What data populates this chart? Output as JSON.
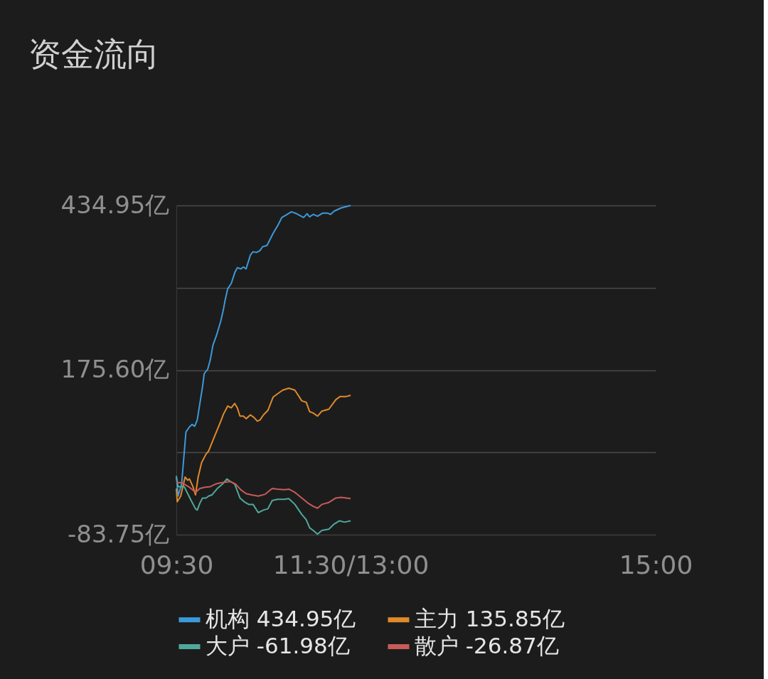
{
  "chart_data": {
    "type": "line",
    "title": "资金流向",
    "xlim": [
      9.5,
      15
    ],
    "xticks": [
      {
        "value": 9.5,
        "label": "09:30"
      },
      {
        "value": 11.5,
        "label": "11:30/13:00"
      },
      {
        "value": 15,
        "label": "15:00"
      }
    ],
    "ylim": [
      -83.75,
      434.95
    ],
    "yticks": [
      {
        "value": -83.75,
        "label": "-83.75亿"
      },
      {
        "value": 45.925,
        "label": null
      },
      {
        "value": 175.6,
        "label": "175.60亿"
      },
      {
        "value": 305.275,
        "label": null
      },
      {
        "value": 434.95,
        "label": "434.95亿"
      }
    ],
    "grid": "y",
    "legend": "bottom",
    "line_style": "solid",
    "marker": "none",
    "series": [
      {
        "name": "机构 434.95亿",
        "color": "#3b9ad9",
        "x": [
          9.5,
          9.52,
          9.56,
          9.61,
          9.65,
          9.68,
          9.71,
          9.74,
          9.77,
          9.8,
          9.82,
          9.86,
          9.89,
          9.92,
          9.96,
          10.01,
          10.04,
          10.06,
          10.09,
          10.13,
          10.17,
          10.2,
          10.24,
          10.27,
          10.3,
          10.35,
          10.38,
          10.42,
          10.46,
          10.49,
          10.54,
          10.61,
          10.67,
          10.71,
          10.76,
          10.82,
          10.88,
          10.96,
          11.0,
          11.03,
          11.07,
          11.12,
          11.18,
          11.23,
          11.27,
          11.31,
          11.39,
          11.5
        ],
        "values": [
          9,
          -23,
          -4,
          78,
          86,
          90,
          87,
          97,
          123,
          149,
          170,
          177,
          192,
          215,
          230,
          253,
          271,
          286,
          304,
          312,
          329,
          337,
          335,
          338,
          335,
          357,
          362,
          361,
          364,
          370,
          372,
          391,
          405,
          416,
          420,
          425,
          422,
          416,
          422,
          417,
          421,
          418,
          423,
          423,
          421,
          426,
          431,
          434.95
        ]
      },
      {
        "name": "主力 135.85亿",
        "color": "#e08a2a",
        "x": [
          9.5,
          9.51,
          9.55,
          9.6,
          9.63,
          9.65,
          9.69,
          9.72,
          9.75,
          9.79,
          9.84,
          9.87,
          9.92,
          10.01,
          10.04,
          10.09,
          10.13,
          10.17,
          10.2,
          10.23,
          10.27,
          10.3,
          10.35,
          10.39,
          10.43,
          10.46,
          10.5,
          10.55,
          10.61,
          10.66,
          10.72,
          10.79,
          10.86,
          10.94,
          10.99,
          11.03,
          11.07,
          11.12,
          11.17,
          11.25,
          11.33,
          11.38,
          11.45,
          11.5
        ],
        "values": [
          -11,
          -32,
          -23,
          7,
          2,
          4,
          -8,
          -21,
          7,
          30,
          43,
          48,
          65,
          95,
          106,
          119,
          116,
          123,
          116,
          103,
          103,
          99,
          105,
          101,
          95,
          97,
          105,
          112,
          133,
          138,
          144,
          147,
          144,
          127,
          125,
          110,
          108,
          103,
          111,
          114,
          129,
          134,
          134,
          135.85
        ]
      },
      {
        "name": "大户 -61.98亿",
        "color": "#4fa89c",
        "x": [
          9.5,
          9.52,
          9.55,
          9.59,
          9.63,
          9.67,
          9.72,
          9.74,
          9.77,
          9.8,
          9.84,
          9.87,
          9.91,
          9.97,
          10.03,
          10.08,
          10.12,
          10.17,
          10.23,
          10.28,
          10.33,
          10.38,
          10.44,
          10.5,
          10.55,
          10.6,
          10.66,
          10.74,
          10.79,
          10.86,
          10.94,
          10.99,
          11.03,
          11.07,
          11.12,
          11.17,
          11.25,
          11.31,
          11.37,
          11.43,
          11.5
        ],
        "values": [
          7,
          -8,
          -8,
          -8,
          -19,
          -30,
          -43,
          -45,
          -34,
          -26,
          -26,
          -23,
          -21,
          -11,
          -4,
          4,
          0,
          -4,
          -26,
          -32,
          -36,
          -36,
          -49,
          -45,
          -43,
          -30,
          -28,
          -28,
          -27,
          -36,
          -52,
          -60,
          -73,
          -77,
          -83,
          -77,
          -75,
          -67,
          -62,
          -64,
          -61.98
        ]
      },
      {
        "name": "散户 -26.87亿",
        "color": "#c85a5a",
        "x": [
          9.5,
          9.55,
          9.59,
          9.65,
          9.72,
          9.77,
          9.83,
          9.89,
          9.95,
          10.01,
          10.06,
          10.12,
          10.18,
          10.24,
          10.3,
          10.36,
          10.44,
          10.52,
          10.6,
          10.66,
          10.74,
          10.79,
          10.86,
          10.94,
          11.01,
          11.07,
          11.12,
          11.17,
          11.25,
          11.33,
          11.39,
          11.5
        ],
        "values": [
          -1,
          -2,
          -4,
          -9,
          -17,
          -11,
          -9,
          -8,
          -4,
          -2,
          -1,
          0,
          -4,
          -13,
          -19,
          -21,
          -23,
          -20,
          -11,
          -12,
          -13,
          -12,
          -17,
          -26,
          -34,
          -39,
          -42,
          -36,
          -33,
          -26,
          -25,
          -26.87
        ]
      }
    ]
  }
}
